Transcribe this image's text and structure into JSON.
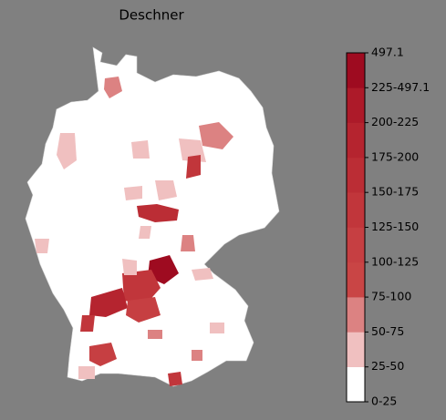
{
  "title": "Deschner",
  "colorbar": {
    "labels": [
      "0-25",
      "25-50",
      "50-75",
      "75-100",
      "100-125",
      "125-150",
      "150-175",
      "175-200",
      "200-225",
      "225-497.1",
      "497.1"
    ],
    "colors": [
      "#ffffff",
      "#f0c0c0",
      "#dc8282",
      "#c94545",
      "#c63f42",
      "#c1363b",
      "#bb2d35",
      "#b5242f",
      "#ad1a29",
      "#9e0b20"
    ]
  }
}
